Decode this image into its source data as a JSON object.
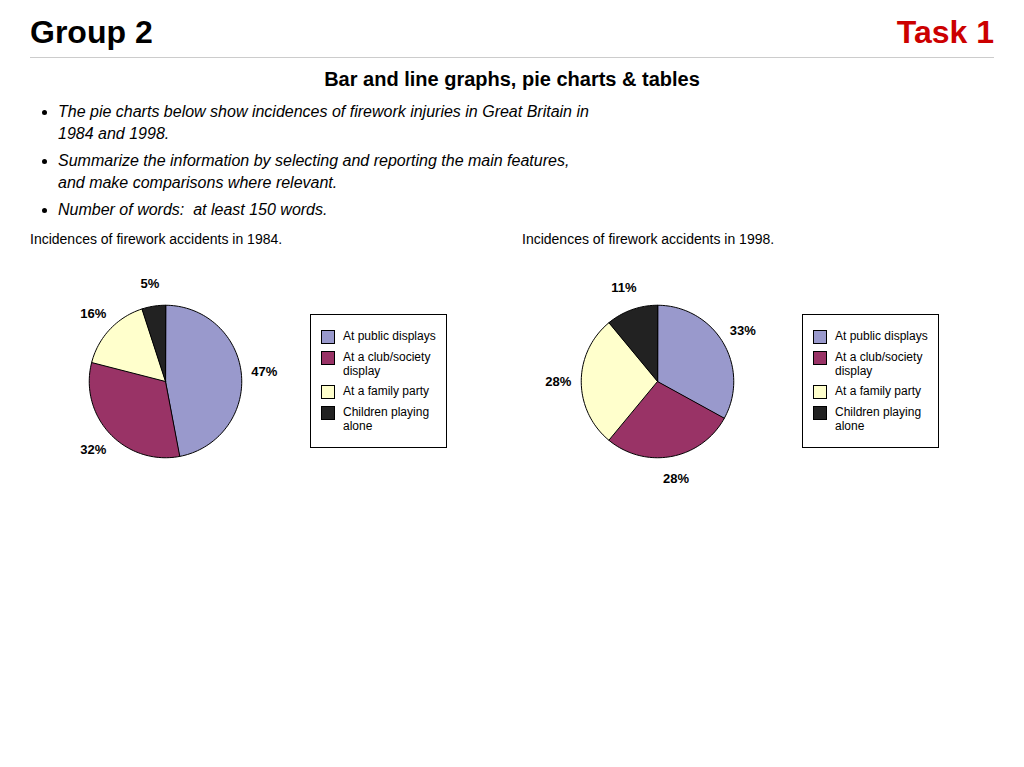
{
  "title": "Group 2",
  "subtitle": "Bar and line graphs, pie charts & tables",
  "annotations": [
    "Task 1",
    "The pie charts below show incidences of firework injuries in Great Britain in\n1984 and 1998.",
    "Summarize the information by selecting and reporting the main features,\nand make comparisons where relevant.",
    "Number of words:  at least 150 words."
  ],
  "chart_data": [
    {
      "type": "pie",
      "title": "Incidences of firework accidents in 1984.",
      "categories": [
        "At public displays",
        "At a club/society\ndisplay",
        "At a family party",
        "Children playing\nalone"
      ],
      "values": [
        47,
        32,
        16,
        5
      ],
      "value_labels": [
        "47%",
        "32%",
        "16%",
        "5%"
      ],
      "data_labels": true,
      "colors": [
        "#9999cc",
        "#993366",
        "#ffffcc",
        "#222222"
      ],
      "legend": "right"
    },
    {
      "type": "pie",
      "title": "Incidences of firework accidents in 1998.",
      "categories": [
        "At public displays",
        "At a club/society\ndisplay",
        "At a family party",
        "Children playing\nalone"
      ],
      "values": [
        33,
        28,
        28,
        11
      ],
      "value_labels": [
        "33%",
        "28%",
        "28%",
        "11%"
      ],
      "data_labels": true,
      "colors": [
        "#9999cc",
        "#993366",
        "#ffffcc",
        "#222222"
      ],
      "legend": "right"
    }
  ]
}
